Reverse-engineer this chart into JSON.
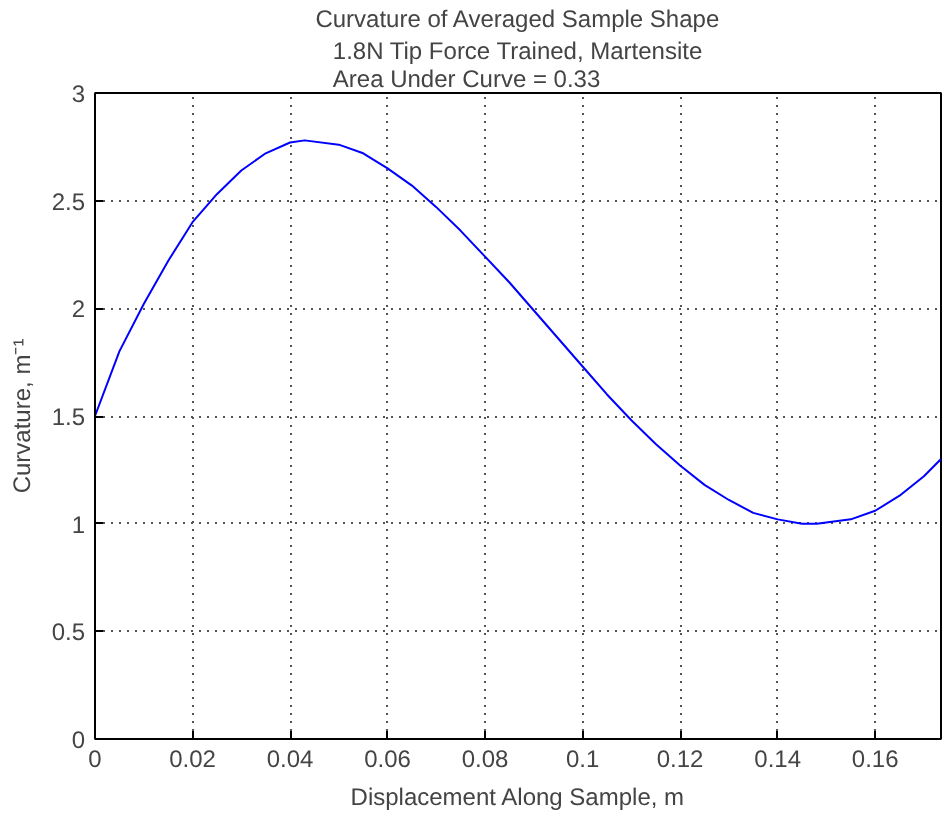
{
  "chart_data": {
    "type": "line",
    "title": "Curvature of Averaged Sample Shape",
    "subtitle": "1.8N Tip Force Trained, Martensite\nArea Under Curve = 0.33",
    "xlabel": "Displacement Along Sample, m",
    "ylabel": "Curvature, m⁻¹",
    "x": [
      0,
      0.005,
      0.01,
      0.015,
      0.02,
      0.025,
      0.03,
      0.035,
      0.04,
      0.043,
      0.05,
      0.055,
      0.06,
      0.065,
      0.07,
      0.075,
      0.08,
      0.085,
      0.09,
      0.095,
      0.1,
      0.105,
      0.11,
      0.115,
      0.12,
      0.125,
      0.13,
      0.135,
      0.14,
      0.145,
      0.148,
      0.155,
      0.16,
      0.165,
      0.17,
      0.1735
    ],
    "series": [
      {
        "color": "#0000ff",
        "values": [
          1.5,
          1.8,
          2.02,
          2.22,
          2.4,
          2.53,
          2.64,
          2.72,
          2.77,
          2.78,
          2.76,
          2.72,
          2.65,
          2.57,
          2.47,
          2.36,
          2.24,
          2.12,
          1.99,
          1.86,
          1.73,
          1.6,
          1.48,
          1.37,
          1.27,
          1.18,
          1.11,
          1.05,
          1.02,
          1.0,
          1.0,
          1.02,
          1.06,
          1.13,
          1.22,
          1.3
        ]
      }
    ],
    "xlim": [
      0,
      0.1735
    ],
    "ylim": [
      0,
      3
    ],
    "xticks": [
      0,
      0.02,
      0.04,
      0.06,
      0.08,
      0.1,
      0.12,
      0.14,
      0.16
    ],
    "yticks": [
      0,
      0.5,
      1,
      1.5,
      2,
      2.5,
      3
    ],
    "grid": true,
    "line_style": "solid",
    "marker": "none"
  }
}
